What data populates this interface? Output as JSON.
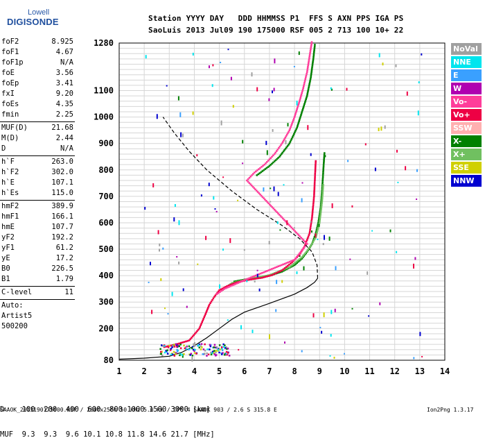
{
  "logo": {
    "top": "Lowell",
    "main": "DIGISONDE"
  },
  "header": {
    "line1": "Station YYYY DAY   DDD HHMMSS P1  FFS S AXN PPS IGA PS",
    "line2": "SaoLuis 2013 Jul09 190 175000 RSF 005 2 713 100 10+ 22"
  },
  "params": [
    {
      "group": [
        {
          "label": "foF2",
          "value": "8.925"
        },
        {
          "label": "foF1",
          "value": "4.67"
        },
        {
          "label": "foF1p",
          "value": "N/A"
        },
        {
          "label": "foE",
          "value": "3.56"
        },
        {
          "label": "foEp",
          "value": "3.41"
        },
        {
          "label": "fxI",
          "value": "9.20"
        },
        {
          "label": "foEs",
          "value": "4.35"
        },
        {
          "label": "fmin",
          "value": "2.25"
        }
      ]
    },
    {
      "group": [
        {
          "label": "MUF(D)",
          "value": "21.68"
        },
        {
          "label": "M(D)",
          "value": "2.44"
        },
        {
          "label": "D",
          "value": "N/A"
        }
      ]
    },
    {
      "group": [
        {
          "label": "h`F",
          "value": "263.0"
        },
        {
          "label": "h`F2",
          "value": "302.0"
        },
        {
          "label": "h`E",
          "value": "107.1"
        },
        {
          "label": "h`Es",
          "value": "115.0"
        }
      ]
    },
    {
      "group": [
        {
          "label": "hmF2",
          "value": "389.9"
        },
        {
          "label": "hmF1",
          "value": "166.1"
        },
        {
          "label": "hmE",
          "value": "107.7"
        },
        {
          "label": "yF2",
          "value": "192.2"
        },
        {
          "label": "yF1",
          "value": "61.2"
        },
        {
          "label": "yE",
          "value": "17.2"
        },
        {
          "label": "B0",
          "value": "226.5"
        },
        {
          "label": "B1",
          "value": "1.79"
        }
      ]
    },
    {
      "group": [
        {
          "label": "C-level",
          "value": "11"
        }
      ]
    }
  ],
  "auto": {
    "line1": "Auto:",
    "line2": "Artist5",
    "line3": "500200"
  },
  "legend": [
    {
      "label": "NoVal",
      "color": "#a0a0a0"
    },
    {
      "label": "NNE",
      "color": "#00e5ee"
    },
    {
      "label": "E",
      "color": "#3aa0ff"
    },
    {
      "label": "W",
      "color": "#b000b0"
    },
    {
      "label": "Vo-",
      "color": "#ff3d9a"
    },
    {
      "label": "Vo+",
      "color": "#ee0044"
    },
    {
      "label": "SSW",
      "color": "#ffb0b0"
    },
    {
      "label": "X-",
      "color": "#008000"
    },
    {
      "label": "X+",
      "color": "#70c060"
    },
    {
      "label": "SSE",
      "color": "#d0d000"
    },
    {
      "label": "NNW",
      "color": "#0000d0"
    }
  ],
  "dmuf": {
    "line1": "D    100  200  400  600  800 1000 1500 3000 [km]",
    "line2": "MUF  9.3  9.3  9.6 10.1 10.8 11.8 14.6 21.7 [MHz]"
  },
  "footer": "SAAOK_2013190175000.RSF / 260fx256h 50 kHz 5.0 km / DPS-4 SAAOK 903 / 2.6 S 315.8 E",
  "version": "Ion2Png 1.3.17",
  "chart_data": {
    "type": "scatter",
    "title": "",
    "xlabel": "",
    "ylabel": "",
    "xlim": [
      1,
      14
    ],
    "ylim": [
      80,
      1280
    ],
    "xticks": [
      1,
      2,
      3,
      4,
      5,
      6,
      7,
      8,
      9,
      10,
      11,
      12,
      13,
      14
    ],
    "yticks": [
      80,
      200,
      300,
      400,
      500,
      600,
      700,
      800,
      900,
      1000,
      1100,
      1280
    ],
    "grid": true,
    "series": [
      {
        "name": "X-",
        "color": "#008000",
        "points": [
          [
            5.6,
            378
          ],
          [
            6.0,
            385
          ],
          [
            6.5,
            392
          ],
          [
            7.0,
            400
          ],
          [
            7.5,
            415
          ],
          [
            8.0,
            440
          ],
          [
            8.3,
            465
          ],
          [
            8.5,
            490
          ],
          [
            8.7,
            520
          ],
          [
            8.85,
            560
          ],
          [
            8.95,
            600
          ],
          [
            9.05,
            660
          ],
          [
            9.1,
            720
          ],
          [
            9.15,
            800
          ],
          [
            9.2,
            870
          ]
        ]
      },
      {
        "name": "X+",
        "color": "#70c060",
        "points": [
          [
            5.1,
            345
          ],
          [
            5.5,
            372
          ],
          [
            6.2,
            388
          ],
          [
            7.0,
            402
          ],
          [
            7.8,
            432
          ],
          [
            8.3,
            470
          ],
          [
            8.6,
            505
          ],
          [
            8.85,
            545
          ],
          [
            9.0,
            600
          ],
          [
            9.1,
            680
          ],
          [
            9.15,
            750
          ]
        ]
      },
      {
        "name": "Vo+",
        "color": "#ee0044",
        "points": [
          [
            2.8,
            130
          ],
          [
            3.2,
            138
          ],
          [
            3.8,
            155
          ],
          [
            4.2,
            200
          ],
          [
            4.45,
            255
          ],
          [
            4.6,
            290
          ],
          [
            4.8,
            320
          ],
          [
            5.0,
            345
          ],
          [
            5.3,
            360
          ],
          [
            5.7,
            375
          ],
          [
            6.2,
            385
          ],
          [
            6.7,
            392
          ],
          [
            7.1,
            402
          ],
          [
            7.5,
            420
          ],
          [
            7.9,
            450
          ],
          [
            8.2,
            480
          ],
          [
            8.4,
            510
          ],
          [
            8.6,
            560
          ],
          [
            8.7,
            620
          ],
          [
            8.78,
            700
          ],
          [
            8.82,
            780
          ],
          [
            8.85,
            840
          ]
        ]
      },
      {
        "name": "Vo-",
        "color": "#ff3d9a",
        "points": [
          [
            4.9,
            330
          ],
          [
            5.2,
            350
          ],
          [
            6.0,
            383
          ],
          [
            8.0,
            460
          ],
          [
            8.5,
            520
          ],
          [
            6.1,
            760
          ],
          [
            6.4,
            790
          ],
          [
            6.8,
            820
          ],
          [
            7.2,
            860
          ],
          [
            7.5,
            900
          ],
          [
            7.8,
            950
          ],
          [
            8.0,
            1000
          ],
          [
            8.2,
            1060
          ],
          [
            8.35,
            1110
          ],
          [
            8.5,
            1170
          ],
          [
            8.6,
            1230
          ],
          [
            8.7,
            1290
          ]
        ]
      },
      {
        "name": "X- (upper)",
        "color": "#008000",
        "points": [
          [
            6.5,
            780
          ],
          [
            7.0,
            815
          ],
          [
            7.4,
            850
          ],
          [
            7.8,
            900
          ],
          [
            8.1,
            960
          ],
          [
            8.3,
            1020
          ],
          [
            8.5,
            1080
          ],
          [
            8.65,
            1150
          ],
          [
            8.75,
            1220
          ],
          [
            8.82,
            1280
          ]
        ]
      },
      {
        "name": "Profile",
        "color": "#000000",
        "points": [
          [
            1.0,
            84
          ],
          [
            2.0,
            88
          ],
          [
            3.0,
            95
          ],
          [
            3.5,
            110
          ],
          [
            4.0,
            135
          ],
          [
            4.5,
            165
          ],
          [
            5.0,
            200
          ],
          [
            5.5,
            235
          ],
          [
            6.0,
            262
          ],
          [
            7.0,
            295
          ],
          [
            8.0,
            330
          ],
          [
            8.5,
            355
          ],
          [
            8.8,
            375
          ],
          [
            8.925,
            390
          ]
        ]
      },
      {
        "name": "Profile dashed",
        "color": "#000000",
        "points": [
          [
            8.925,
            390
          ],
          [
            8.9,
            440
          ],
          [
            8.7,
            490
          ],
          [
            8.2,
            540
          ],
          [
            7.5,
            590
          ],
          [
            6.5,
            650
          ],
          [
            5.5,
            720
          ],
          [
            4.5,
            800
          ],
          [
            3.8,
            870
          ],
          [
            3.2,
            940
          ],
          [
            2.75,
            1000
          ]
        ]
      }
    ]
  }
}
